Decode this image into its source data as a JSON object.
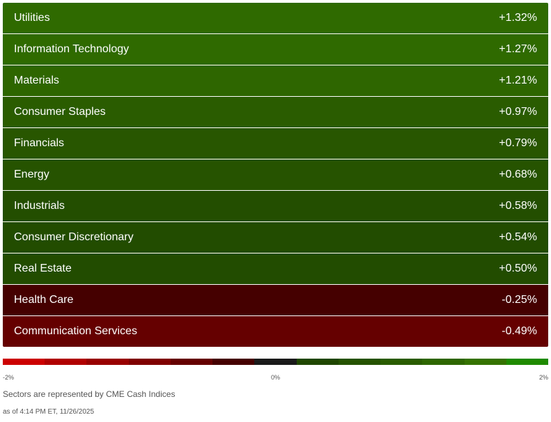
{
  "sectors": [
    {
      "name": "Utilities",
      "change": "+1.32%",
      "color": "#2f6a00"
    },
    {
      "name": "Information Technology",
      "change": "+1.27%",
      "color": "#2f6a00"
    },
    {
      "name": "Materials",
      "change": "+1.21%",
      "color": "#2e6600"
    },
    {
      "name": "Consumer Staples",
      "change": "+0.97%",
      "color": "#2a5c00"
    },
    {
      "name": "Financials",
      "change": "+0.79%",
      "color": "#285600"
    },
    {
      "name": "Energy",
      "change": "+0.68%",
      "color": "#265300"
    },
    {
      "name": "Industrials",
      "change": "+0.58%",
      "color": "#234e00"
    },
    {
      "name": "Consumer Discretionary",
      "change": "+0.54%",
      "color": "#224c00"
    },
    {
      "name": "Real Estate",
      "change": "+0.50%",
      "color": "#224c00"
    },
    {
      "name": "Health Care",
      "change": "-0.25%",
      "color": "#450000"
    },
    {
      "name": "Communication Services",
      "change": "-0.49%",
      "color": "#650000"
    }
  ],
  "legend": {
    "colors": [
      "#cc0000",
      "#b00000",
      "#980000",
      "#7f0000",
      "#650000",
      "#450000",
      "#1a1a1a",
      "#1f4600",
      "#255200",
      "#2a5c00",
      "#2e6600",
      "#357200",
      "#1f8a00"
    ],
    "min_label": "-2%",
    "mid_label": "0%",
    "max_label": "2%"
  },
  "footer": {
    "note": "Sectors are represented by CME Cash Indices",
    "as_of": "as of 4:14 PM ET, 11/26/2025"
  }
}
